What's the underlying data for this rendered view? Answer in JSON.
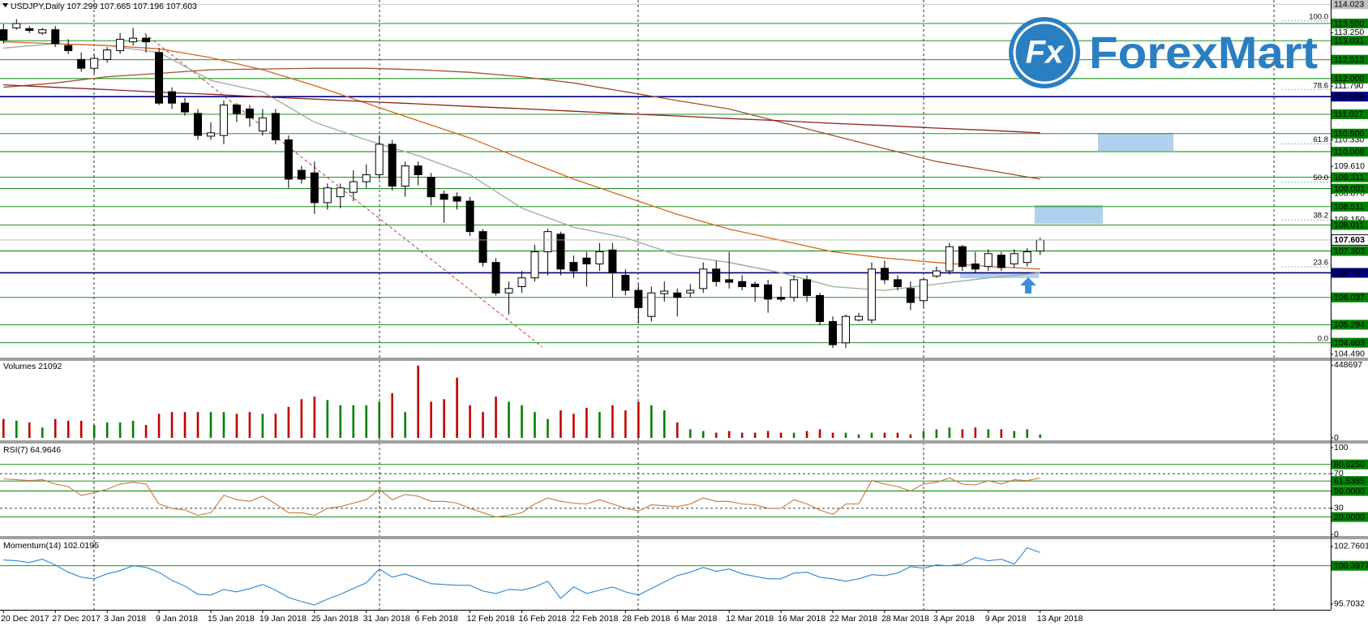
{
  "logo": {
    "mark": "Fx",
    "name": "ForexMart"
  },
  "chart_data": [
    {
      "type": "candlestick",
      "title": "USDJPY,Daily",
      "categories": [
        "20 Dec 2017",
        null,
        null,
        null,
        "27 Dec 2017",
        null,
        null,
        null,
        "3 Jan 2018",
        null,
        null,
        null,
        "9 Jan 2018",
        null,
        null,
        null,
        "15 Jan 2018",
        null,
        null,
        null,
        "19 Jan 2018",
        null,
        null,
        null,
        "25 Jan 2018",
        null,
        null,
        null,
        "31 Jan 2018",
        null,
        null,
        null,
        "6 Feb 2018",
        null,
        null,
        null,
        "12 Feb 2018",
        null,
        null,
        null,
        "16 Feb 2018",
        null,
        null,
        null,
        "22 Feb 2018",
        null,
        null,
        null,
        "28 Feb 2018",
        null,
        null,
        null,
        "6 Mar 2018",
        null,
        null,
        null,
        "12 Mar 2018",
        null,
        null,
        null,
        "16 Mar 2018",
        null,
        null,
        null,
        "22 Mar 2018",
        null,
        null,
        null,
        "28 Mar 2018",
        null,
        null,
        null,
        "3 Apr 2018",
        null,
        null,
        null,
        "9 Apr 2018",
        null,
        null,
        null,
        "13 Apr 2018"
      ],
      "open": [
        113.33,
        113.38,
        113.36,
        113.24,
        113.33,
        112.9,
        112.52,
        112.28,
        112.52,
        112.76,
        113.0,
        113.1,
        112.71,
        111.64,
        111.33,
        111.05,
        110.43,
        110.45,
        111.28,
        111.17,
        110.57,
        111.05,
        110.33,
        109.5,
        109.43,
        108.62,
        108.78,
        108.9,
        109.19,
        109.38,
        110.21,
        109.07,
        109.62,
        109.31,
        108.85,
        108.78,
        108.66,
        107.83,
        106.99,
        106.16,
        106.33,
        106.57,
        107.28,
        107.76,
        106.99,
        107.11,
        106.95,
        107.33,
        106.64,
        106.23,
        105.52,
        106.14,
        106.16,
        106.16,
        106.28,
        106.81,
        106.52,
        106.47,
        106.4,
        106.38,
        106.04,
        106.04,
        106.52,
        106.09,
        105.38,
        104.8,
        105.42,
        105.42,
        106.83,
        106.52,
        106.28,
        105.95,
        106.62,
        106.76,
        107.42,
        106.95,
        106.88,
        107.19,
        106.95,
        106.99,
        107.299
      ],
      "high": [
        113.48,
        113.62,
        113.43,
        113.38,
        113.43,
        113.07,
        112.71,
        112.67,
        112.86,
        113.24,
        113.38,
        113.19,
        112.83,
        111.76,
        111.47,
        111.17,
        110.81,
        111.4,
        111.33,
        111.28,
        111.17,
        111.17,
        110.45,
        109.62,
        109.74,
        109.14,
        109.14,
        109.5,
        109.66,
        110.45,
        110.33,
        109.74,
        109.74,
        109.43,
        108.95,
        108.9,
        108.78,
        107.9,
        107.11,
        106.47,
        106.76,
        107.47,
        107.9,
        107.83,
        107.18,
        107.28,
        107.52,
        107.52,
        106.81,
        106.4,
        106.33,
        106.47,
        106.28,
        106.4,
        106.99,
        107.04,
        107.28,
        106.64,
        106.47,
        106.52,
        106.33,
        106.64,
        106.64,
        106.16,
        105.52,
        105.57,
        105.62,
        106.99,
        107.04,
        106.64,
        106.47,
        106.57,
        106.88,
        107.52,
        107.47,
        107.28,
        107.35,
        107.28,
        107.35,
        107.38,
        107.665
      ],
      "low": [
        112.95,
        113.33,
        113.24,
        113.19,
        112.86,
        112.67,
        112.19,
        112.14,
        112.43,
        112.67,
        112.9,
        112.71,
        111.28,
        111.17,
        110.99,
        110.33,
        110.33,
        110.21,
        110.81,
        110.69,
        110.45,
        110.21,
        109.02,
        109.14,
        108.31,
        108.43,
        108.47,
        108.66,
        109.02,
        109.26,
        108.95,
        108.78,
        109.09,
        108.54,
        108.07,
        108.43,
        107.71,
        106.88,
        106.09,
        105.57,
        106.16,
        106.47,
        106.64,
        106.64,
        106.57,
        106.33,
        106.76,
        106.04,
        106.09,
        105.33,
        105.38,
        105.92,
        105.52,
        106.04,
        106.16,
        106.33,
        106.28,
        106.23,
        105.92,
        105.62,
        105.92,
        105.92,
        105.92,
        105.28,
        104.66,
        104.66,
        105.38,
        105.33,
        106.4,
        106.23,
        105.69,
        105.76,
        106.57,
        106.66,
        106.76,
        106.71,
        106.76,
        106.76,
        106.85,
        106.88,
        107.196
      ],
      "close": [
        113.05,
        113.5,
        113.31,
        113.33,
        112.95,
        112.76,
        112.28,
        112.55,
        112.78,
        113.07,
        113.1,
        113.0,
        111.33,
        111.33,
        111.09,
        110.45,
        110.52,
        111.28,
        111.05,
        110.93,
        110.93,
        110.33,
        109.26,
        109.26,
        108.62,
        109.02,
        109.02,
        109.19,
        109.38,
        110.21,
        109.07,
        109.62,
        109.38,
        108.78,
        108.71,
        108.66,
        107.83,
        106.99,
        106.16,
        106.28,
        106.57,
        107.28,
        107.83,
        106.81,
        106.76,
        106.95,
        107.28,
        106.71,
        106.23,
        105.76,
        106.16,
        106.21,
        106.04,
        106.23,
        106.81,
        106.47,
        106.45,
        106.33,
        106.33,
        105.99,
        105.99,
        106.52,
        106.09,
        105.38,
        104.75,
        105.52,
        105.52,
        106.81,
        106.52,
        106.33,
        105.9,
        106.52,
        106.76,
        107.42,
        106.88,
        106.81,
        107.23,
        106.85,
        107.23,
        107.28,
        107.603
      ],
      "up_color": "#ffffff",
      "down_color": "#000000",
      "candle_edge": "#000000",
      "moving_average_x": [
        "20 Dec 2017",
        "27 Dec 2017",
        "3 Jan 2018",
        "9 Jan 2018",
        "15 Jan 2018",
        "19 Jan 2018",
        "25 Jan 2018",
        "31 Jan 2018",
        "6 Feb 2018",
        "12 Feb 2018",
        "16 Feb 2018",
        "22 Feb 2018",
        "28 Feb 2018",
        "6 Mar 2018",
        "12 Mar 2018",
        "16 Mar 2018",
        "22 Mar 2018",
        "28 Mar 2018",
        "3 Apr 2018",
        "9 Apr 2018",
        "13 Apr 2018"
      ],
      "moving_averages": [
        {
          "color": "#9aab9a",
          "values": [
            112.83,
            112.95,
            112.9,
            112.71,
            111.95,
            111.64,
            110.81,
            110.33,
            109.9,
            109.38,
            108.47,
            107.95,
            107.66,
            107.19,
            106.99,
            106.71,
            106.33,
            106.23,
            106.4,
            106.57,
            106.71
          ]
        },
        {
          "color": "#d2691e",
          "values": [
            113.0,
            112.95,
            112.9,
            112.81,
            112.57,
            112.24,
            111.81,
            111.33,
            110.85,
            110.38,
            109.81,
            109.26,
            108.78,
            108.3,
            107.9,
            107.59,
            107.28,
            107.11,
            106.99,
            106.88,
            106.81
          ]
        },
        {
          "color": "#a0522d",
          "values": [
            111.76,
            111.88,
            112.05,
            112.14,
            112.24,
            112.26,
            112.28,
            112.28,
            112.24,
            112.17,
            112.05,
            111.88,
            111.64,
            111.4,
            111.17,
            110.81,
            110.45,
            110.09,
            109.74,
            109.5,
            109.26
          ]
        },
        {
          "color": "#8b2323",
          "values": [
            111.83,
            111.76,
            111.7,
            111.63,
            111.57,
            111.5,
            111.44,
            111.37,
            111.31,
            111.24,
            111.18,
            111.11,
            111.04,
            110.98,
            110.91,
            110.85,
            110.78,
            110.72,
            110.65,
            110.59,
            110.52
          ]
        }
      ],
      "ylim": [
        104.42,
        114.14
      ],
      "yticks": [
        {
          "value": 113.25,
          "label": "113.250"
        },
        {
          "value": 111.79,
          "label": "111.790"
        },
        {
          "value": 110.33,
          "label": "110.330"
        },
        {
          "value": 109.61,
          "label": "109.610"
        },
        {
          "value": 108.87,
          "label": "108.870"
        },
        {
          "value": 108.15,
          "label": "108.150"
        },
        {
          "value": 104.49,
          "label": "104.490"
        }
      ],
      "levels": [
        {
          "value": 114.023,
          "label": "114.023",
          "color": "#c0c0c0"
        },
        {
          "value": 113.5,
          "label": "113.500",
          "color": "#008000"
        },
        {
          "value": 113.031,
          "label": "113.031",
          "color": "#008000"
        },
        {
          "value": 112.513,
          "label": "112.513",
          "color": "#008000"
        },
        {
          "value": 112,
          "label": "112.000",
          "color": "#008000"
        },
        {
          "value": 111.508,
          "label": "111.508",
          "color": "#000080"
        },
        {
          "value": 111.027,
          "label": "111.027",
          "color": "#008000"
        },
        {
          "value": 110.5,
          "label": "110.500",
          "color": "#008000"
        },
        {
          "value": 110.009,
          "label": "110.009",
          "color": "#008000"
        },
        {
          "value": 109.311,
          "label": "109.311",
          "color": "#008000"
        },
        {
          "value": 109.001,
          "label": "109.001",
          "color": "#008000"
        },
        {
          "value": 108.511,
          "label": "108.511",
          "color": "#008000"
        },
        {
          "value": 108.011,
          "label": "108.011",
          "color": "#008000"
        },
        {
          "value": 107.303,
          "label": "107.303",
          "color": "#008000"
        },
        {
          "value": 106.707,
          "label": "106.707",
          "color": "#000080"
        },
        {
          "value": 106.037,
          "label": "106.037",
          "color": "#008000"
        },
        {
          "value": 105.294,
          "label": "105.294",
          "color": "#008000"
        },
        {
          "value": 104.803,
          "label": "104.803",
          "color": "#008000"
        }
      ],
      "fibonacci": {
        "high": 113.57,
        "low": 104.8,
        "levels": [
          {
            "value": 100,
            "label": "100.0"
          },
          {
            "value": 78.6,
            "label": "78.6"
          },
          {
            "value": 61.8,
            "label": "61.8"
          },
          {
            "value": 50,
            "label": "50.0"
          },
          {
            "value": 38.2,
            "label": "38.2"
          },
          {
            "value": 23.6,
            "label": "23.6"
          },
          {
            "value": 0,
            "label": "0.0"
          }
        ]
      }
    },
    {
      "type": "bar",
      "title": "Volumes",
      "values": [
        116600,
        106000,
        95400,
        63600,
        116600,
        106000,
        106000,
        79500,
        95400,
        95400,
        106000,
        79500,
        148400,
        159000,
        159000,
        159000,
        159000,
        159000,
        148400,
        159000,
        148400,
        148400,
        190800,
        238500,
        254400,
        233200,
        201400,
        201400,
        201400,
        222600,
        275600,
        159000,
        446000,
        222600,
        238500,
        371000,
        201400,
        159000,
        254400,
        222600,
        201400,
        159000,
        116600,
        169600,
        148400,
        185500,
        159000,
        201400,
        169600,
        222600,
        201400,
        169600,
        95400,
        53000,
        42400,
        31800,
        42400,
        31800,
        31800,
        42400,
        31800,
        31800,
        42400,
        53000,
        31800,
        31800,
        21200,
        31800,
        31800,
        31800,
        21200,
        42400,
        53000,
        63600,
        53000,
        63600,
        53000,
        53000,
        42400,
        53000,
        21092
      ],
      "up_color": "#008000",
      "down_color": "#c00000",
      "ylim": [
        0,
        470000
      ],
      "yticks": [
        0,
        448697
      ]
    },
    {
      "type": "line",
      "title": "RSI(7)",
      "color": "#c8783c",
      "grid": true,
      "values": [
        64,
        63,
        62,
        63,
        58,
        55,
        45,
        48,
        52,
        58,
        60,
        58,
        35,
        30,
        28,
        22,
        25,
        45,
        40,
        38,
        44,
        35,
        25,
        25,
        22,
        30,
        32,
        36,
        40,
        52,
        40,
        46,
        44,
        38,
        38,
        36,
        30,
        25,
        20,
        22,
        25,
        35,
        42,
        38,
        36,
        35,
        40,
        35,
        30,
        27,
        34,
        33,
        32,
        35,
        42,
        38,
        38,
        35,
        34,
        30,
        30,
        40,
        35,
        28,
        23,
        35,
        35,
        62,
        58,
        55,
        50,
        58,
        60,
        65,
        58,
        57,
        62,
        58,
        63,
        62,
        64.9646
      ],
      "ylim": [
        0,
        100
      ],
      "yticks": [
        0,
        30,
        70,
        100
      ],
      "levels": [
        {
          "value": 80.625,
          "label": "80.6250",
          "color": "#008000"
        },
        {
          "value": 61.5385,
          "label": "61.5385",
          "color": "#008000"
        },
        {
          "value": 50,
          "label": "50.0000",
          "color": "#008000"
        },
        {
          "value": 20,
          "label": "20.0000",
          "color": "#008000"
        }
      ]
    },
    {
      "type": "line",
      "title": "Momentum(14)",
      "color": "#2f86d0",
      "grid": false,
      "values": [
        101.1,
        101.0,
        100.8,
        101.2,
        100.5,
        99.6,
        99.0,
        98.8,
        99.4,
        99.8,
        100.4,
        100.2,
        99.6,
        98.6,
        97.9,
        96.9,
        96.8,
        97.5,
        97.2,
        97.6,
        98.1,
        97.4,
        96.5,
        96.0,
        95.6,
        96.3,
        96.9,
        97.6,
        98.3,
        100.0,
        99.0,
        99.4,
        98.8,
        98.2,
        98.1,
        98.0,
        98.0,
        97.3,
        97.0,
        97.5,
        97.4,
        97.8,
        98.5,
        96.4,
        97.8,
        97.0,
        97.4,
        97.8,
        97.2,
        96.8,
        97.6,
        98.4,
        99.2,
        99.6,
        100.2,
        99.7,
        100.0,
        99.4,
        99.1,
        98.8,
        98.8,
        99.5,
        99.6,
        99.0,
        98.8,
        98.5,
        98.8,
        99.3,
        99.2,
        99.5,
        100.3,
        100.1,
        100.5,
        100.4,
        100.6,
        101.4,
        101.0,
        101.2,
        100.6,
        102.6,
        102.0195
      ],
      "ylim": [
        95.0,
        103.55
      ],
      "yticks": [
        95.7032,
        102.7601
      ],
      "levels": [
        {
          "value": 100.3977,
          "label": "100.3977",
          "color": "#008000"
        }
      ]
    }
  ]
}
